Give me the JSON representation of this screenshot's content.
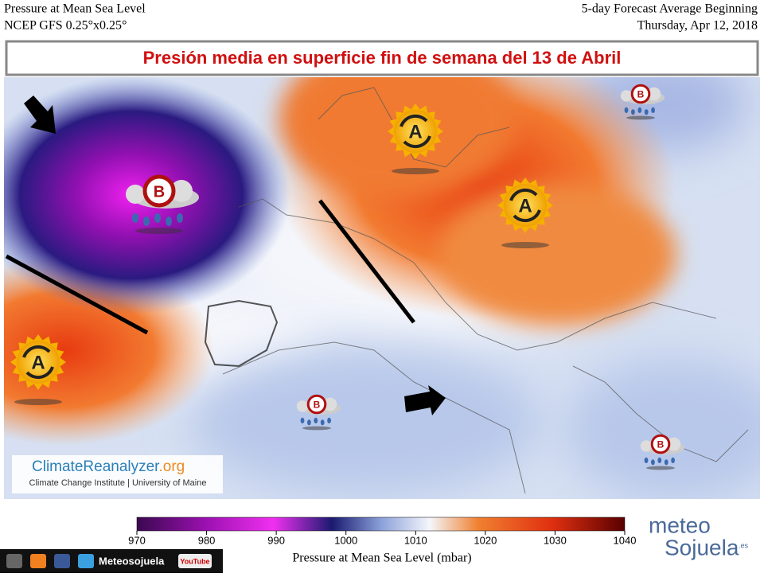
{
  "header": {
    "left": [
      "Pressure at Mean Sea Level",
      "NCEP GFS 0.25°x0.25°"
    ],
    "right": [
      "5-day Forecast Average Beginning",
      "Thursday, Apr 12, 2018"
    ]
  },
  "banner": "Presión media en superficie fin de semana del 13 de Abril",
  "pressure_centers": [
    "A",
    "A",
    "A",
    "B",
    "B",
    "B",
    "B"
  ],
  "logo": {
    "name": "ClimateReanalyzer",
    "tld": ".org",
    "credit": "Climate Change Institute | University of Maine"
  },
  "colorbar": {
    "ticks": [
      970,
      980,
      990,
      1000,
      1010,
      1020,
      1030,
      1040
    ],
    "label": "Pressure at Mean Sea Level (mbar)"
  },
  "footer": {
    "handle": "Meteosojuela",
    "youtube": "YouTube"
  },
  "brand": {
    "part1": "meteo",
    "part2": "Sojuela",
    "tld": ".es"
  }
}
